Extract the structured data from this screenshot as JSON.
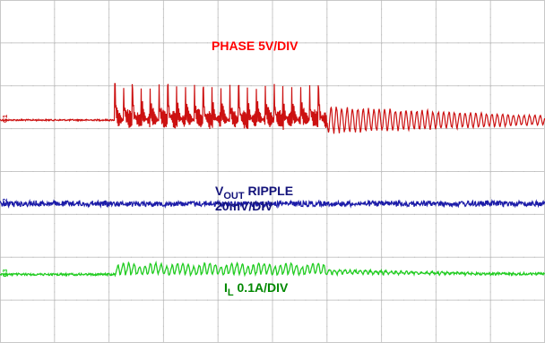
{
  "chart_data": {
    "type": "line",
    "title": "",
    "grid": {
      "divisions_x": 10,
      "divisions_y": 8,
      "minor_ticks_per_div": 5,
      "visible": true
    },
    "colors": {
      "background": "#ffffff",
      "grid": "#c8c8c8",
      "grid_minor": "#bdbdbd",
      "phase": "#cc1111",
      "vout": "#1c1ca8",
      "il": "#22cc22",
      "label_phase": "#ff0000",
      "label_vout": "#13137a",
      "label_il": "#008800"
    },
    "series": [
      {
        "key": "phase",
        "channel_marker": "C1",
        "label": "PHASE 5V/DIV",
        "baseline_div": 5.2,
        "burst_start_div": 2.1,
        "burst_peak_end_div": 6.0,
        "decay_end_div": 10.0,
        "pulse_count": 24,
        "pulse_amplitude_div": 0.85,
        "ringing_amplitude_div": 0.25
      },
      {
        "key": "vout",
        "channel_marker": "C2",
        "label_main": "V",
        "label_sub": "OUT",
        "label_rest": " RIPPLE",
        "label_line2": "20mV/DIV",
        "baseline_div": 3.25,
        "noise_amplitude_div": 0.06
      },
      {
        "key": "il",
        "channel_marker": "C3",
        "label_main": "I",
        "label_sub": "L",
        "label_rest": " 0.1A/DIV",
        "baseline_div": 1.6,
        "burst_start_div": 2.1,
        "burst_end_div": 6.0,
        "ripple_amplitude_div": 0.22
      }
    ]
  }
}
